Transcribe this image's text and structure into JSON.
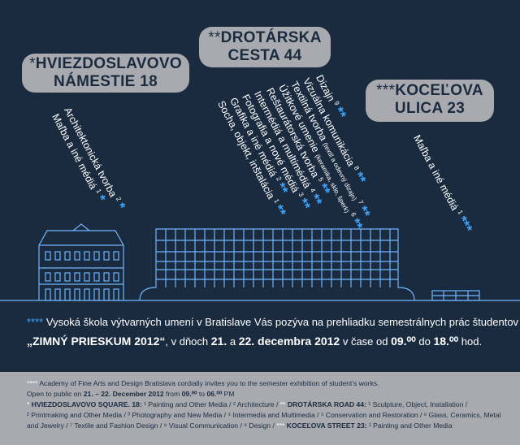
{
  "locations": {
    "hviezdoslavovo": {
      "stars": "*",
      "line1": "HVIEZDOSLAVOVO",
      "line2": "NÁMESTIE 18"
    },
    "drotarska": {
      "stars": "**",
      "line1": "DROTÁRSKA",
      "line2": "CESTA 44"
    },
    "kocelova": {
      "stars": "***",
      "line1": "KOCEĽOVA",
      "line2": "ULICA 23"
    }
  },
  "departments": {
    "hviezdoslavovo": [
      {
        "label": "Architektonická tvorba",
        "num": "2"
      },
      {
        "label": "Maľba a iné médiá",
        "num": "1"
      }
    ],
    "drotarska": [
      {
        "label": "Dizajn",
        "num": "9",
        "note": ""
      },
      {
        "label": "Vizuálna komunikácia",
        "num": "8",
        "note": ""
      },
      {
        "label": "Textilná tvorba",
        "num": "7",
        "note": "(textil a odevný dizajn)"
      },
      {
        "label": "Úžitkové umenie",
        "num": "6",
        "note": "(keramika, sklo, šperk)"
      },
      {
        "label": "Reštaurátorská tvorba",
        "num": "5",
        "note": ""
      },
      {
        "label": "Intermédiá a multimédiá",
        "num": "4",
        "note": ""
      },
      {
        "label": "Fotografia a nové médiá",
        "num": "3",
        "note": ""
      },
      {
        "label": "Grafika a iné médiá",
        "num": "2",
        "note": ""
      },
      {
        "label": "Socha, objekt, inštalácia",
        "num": "1",
        "note": ""
      }
    ],
    "kocelova": [
      {
        "label": "Maľba a iné médiá",
        "num": "1"
      }
    ]
  },
  "invitation": {
    "stars": "****",
    "line1": "Vysoká škola výtvarných umení v Bratislave Vás pozýva na prehliadku semestrálnych prác študentov",
    "title": "„ZIMNÝ PRIESKUM 2012“",
    "days_prefix": ", v dňoch ",
    "day1": "21.",
    "and": " a ",
    "day2": "22. decembra 2012",
    "time_prefix": " v čase od ",
    "time_from": "09.⁰⁰",
    "to": " do ",
    "time_to": "18.⁰⁰",
    "suffix": " hod."
  },
  "english": {
    "stars": "****",
    "line1": "Academy of Fine Arts and Design Bratislava cordially invites you to the semester exhibition of student's works.",
    "open_prefix": "Open to public on ",
    "open_dates": "21. – 22. December 2012",
    "open_from": " from ",
    "time_from": "09.⁰⁰",
    "to": " to ",
    "time_to": "06.⁰⁰",
    "time_suffix": " PM",
    "line3a_stars": "*",
    "line3a": "HVIEZDOSLAVOVO SQUARE. 18:",
    "line3b": "¹ Painting and Other Media / ² Architecture /",
    "line3c_stars": "**",
    "line3c": "DROTÁRSKA ROAD 44:",
    "line3d": "¹ Sculpture, Object, Installation /",
    "line4": "² Printmaking and Other Media / ³ Photography and New Media / ⁴ Intermedia and Multimedia / ⁵ Conservation and Restoration / ⁶ Glass, Ceramics, Metal",
    "line5a": "and Jewelry / ⁷ Textile and Fashion Design / ⁸ Visual Communication / ⁹ Design /",
    "line5_stars": "***",
    "line5b": "KOCEĽOVA STREET 23:",
    "line5c": "¹ Painting and Other Media"
  },
  "colors": {
    "background": "#1b2b3f",
    "pill": "#a8aab0",
    "accent": "#3ea6ff",
    "line": "#6fb6ff"
  }
}
